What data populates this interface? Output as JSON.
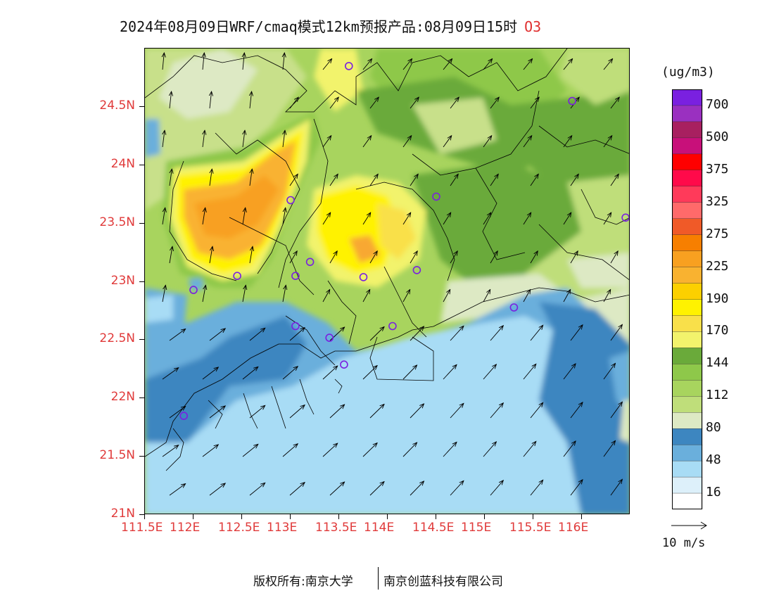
{
  "title": {
    "text": "2024年08月09日WRF/cmaq模式12km预报产品:08月09日15时",
    "species": "O3"
  },
  "map": {
    "lat_labels": [
      "24.5N",
      "24N",
      "23.5N",
      "23N",
      "22.5N",
      "22N",
      "21.5N",
      "21N"
    ],
    "lon_labels": [
      "111.5E",
      "112E",
      "112.5E",
      "113E",
      "113.5E",
      "114E",
      "114.5E",
      "115E",
      "115.5E",
      "116E"
    ],
    "lon_range": [
      111.5,
      116.5
    ],
    "lat_range": [
      21.0,
      25.0
    ],
    "colors": {
      "lt_blue": "#a8dcf5",
      "mid_blue": "#6aafdc",
      "dk_blue": "#3d86c0",
      "pale": "#dde9c4",
      "lt_green": "#bfde7a",
      "green": "#8ec84a",
      "dk_green": "#6aaa3a",
      "yellow_lt": "#f2f36c",
      "yellow": "#fff200",
      "orange_lt": "#f9cc4a",
      "orange": "#f8a830"
    },
    "stations": [
      {
        "lon": 113.6,
        "lat": 24.85
      },
      {
        "lon": 115.9,
        "lat": 24.55
      },
      {
        "lon": 113.0,
        "lat": 23.7
      },
      {
        "lon": 114.5,
        "lat": 23.73
      },
      {
        "lon": 116.45,
        "lat": 23.55
      },
      {
        "lon": 113.2,
        "lat": 23.17
      },
      {
        "lon": 113.05,
        "lat": 23.05
      },
      {
        "lon": 112.45,
        "lat": 23.05
      },
      {
        "lon": 112.0,
        "lat": 22.93
      },
      {
        "lon": 114.3,
        "lat": 23.1
      },
      {
        "lon": 113.75,
        "lat": 23.04
      },
      {
        "lon": 115.3,
        "lat": 22.78
      },
      {
        "lon": 113.05,
        "lat": 22.62
      },
      {
        "lon": 113.4,
        "lat": 22.52
      },
      {
        "lon": 114.05,
        "lat": 22.62
      },
      {
        "lon": 113.55,
        "lat": 22.29
      },
      {
        "lon": 111.9,
        "lat": 21.85
      }
    ]
  },
  "colorbar": {
    "title": "(ug/m3)",
    "colors": [
      "#ffffff",
      "#ddf0fa",
      "#a8dcf5",
      "#6aafdc",
      "#3d86c0",
      "#dde9c4",
      "#bfde7a",
      "#a8d45e",
      "#8ec84a",
      "#6aaa3a",
      "#f2f36c",
      "#f9e04a",
      "#fff200",
      "#fcd000",
      "#f9b230",
      "#f8a020",
      "#f77f00",
      "#f05a28",
      "#ff6a6a",
      "#ff3a5a",
      "#ff0a4a",
      "#ff0000",
      "#c8107a",
      "#a82060",
      "#9a30c0",
      "#7a20e0"
    ],
    "labels": [
      "16",
      "48",
      "80",
      "112",
      "144",
      "170",
      "190",
      "225",
      "275",
      "325",
      "375",
      "500",
      "700"
    ]
  },
  "wind_legend": {
    "label": "10 m/s"
  },
  "footer": {
    "left": "版权所有:南京大学",
    "right": "南京创蓝科技有限公司"
  }
}
